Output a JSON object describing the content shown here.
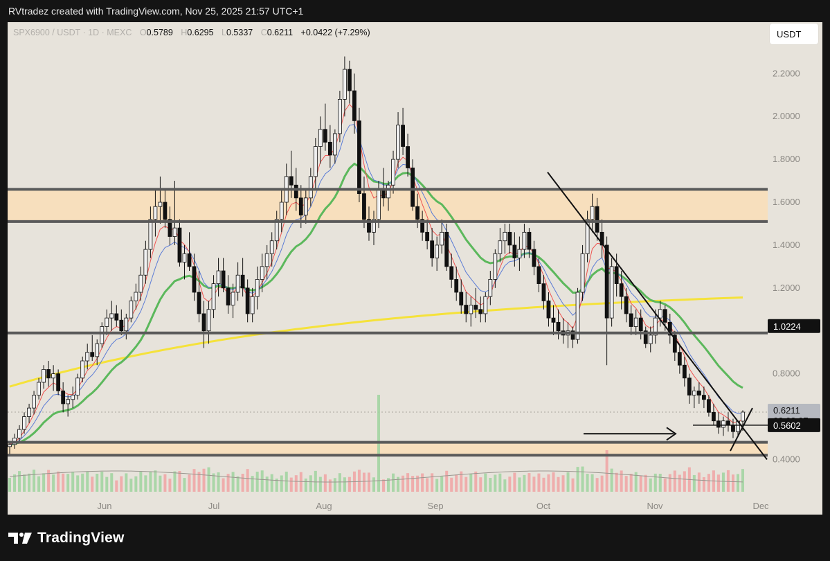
{
  "header": {
    "attribution": "RVtradez created with TradingView.com, Nov 25, 2025 21:57 UTC+1"
  },
  "legend": {
    "symbol": "SPX6900 / USDT · 1D · MEXC",
    "o_key": "O",
    "o_val": "0.5789",
    "h_key": "H",
    "h_val": "0.6295",
    "l_key": "L",
    "l_val": "0.5337",
    "c_key": "C",
    "c_val": "0.6211",
    "change": "+0.0422 (+7.29%)"
  },
  "currency_button": "USDT",
  "price_labels": {
    "level_1": "1.0224",
    "last_price": "0.6211",
    "countdown": "03:02:07",
    "level_2": "0.5602"
  },
  "footer": {
    "brand": "TradingView"
  },
  "colors": {
    "background": "#e7e3db",
    "bull": "#f1f1f1",
    "bear": "#111111",
    "ema_short": "#ef5350",
    "ema_mid": "#5b7cd6",
    "ema_green": "#5cb85c",
    "ema_yellow": "#f5e23a",
    "zone": "#f7dfbd",
    "hline": "#5a5a5a",
    "vol_up": "#9fd49f",
    "vol_down": "#f0a3a3"
  },
  "chart_data": {
    "type": "candlestick",
    "y_axis": {
      "scale": "linear",
      "min": 0.34,
      "max": 2.44,
      "ticks": [
        "2.2000",
        "2.0000",
        "1.8000",
        "1.6000",
        "1.4000",
        "1.2000",
        "0.8000",
        "0.4000"
      ]
    },
    "x_axis": {
      "ticks": [
        "Jun",
        "Jul",
        "Aug",
        "Sep",
        "Oct",
        "Nov",
        "Dec"
      ]
    },
    "candles": [
      [
        0.46,
        0.48,
        0.42,
        0.47
      ],
      [
        0.47,
        0.52,
        0.45,
        0.5
      ],
      [
        0.5,
        0.56,
        0.48,
        0.54
      ],
      [
        0.54,
        0.62,
        0.52,
        0.6
      ],
      [
        0.6,
        0.66,
        0.57,
        0.64
      ],
      [
        0.64,
        0.72,
        0.61,
        0.7
      ],
      [
        0.7,
        0.78,
        0.68,
        0.76
      ],
      [
        0.76,
        0.84,
        0.73,
        0.82
      ],
      [
        0.82,
        0.86,
        0.74,
        0.78
      ],
      [
        0.78,
        0.84,
        0.72,
        0.8
      ],
      [
        0.8,
        0.82,
        0.7,
        0.72
      ],
      [
        0.72,
        0.76,
        0.62,
        0.66
      ],
      [
        0.66,
        0.7,
        0.6,
        0.68
      ],
      [
        0.68,
        0.74,
        0.64,
        0.7
      ],
      [
        0.7,
        0.8,
        0.68,
        0.78
      ],
      [
        0.78,
        0.88,
        0.76,
        0.86
      ],
      [
        0.86,
        0.94,
        0.82,
        0.9
      ],
      [
        0.9,
        0.98,
        0.86,
        0.88
      ],
      [
        0.88,
        0.96,
        0.84,
        0.94
      ],
      [
        0.94,
        1.04,
        0.92,
        1.02
      ],
      [
        1.02,
        1.1,
        0.98,
        1.06
      ],
      [
        1.06,
        1.14,
        1.0,
        1.08
      ],
      [
        1.08,
        1.12,
        1.02,
        1.05
      ],
      [
        1.05,
        1.1,
        0.98,
        1.0
      ],
      [
        1.0,
        1.08,
        0.96,
        1.06
      ],
      [
        1.06,
        1.16,
        1.04,
        1.14
      ],
      [
        1.14,
        1.22,
        1.1,
        1.18
      ],
      [
        1.18,
        1.3,
        1.14,
        1.26
      ],
      [
        1.26,
        1.42,
        1.22,
        1.38
      ],
      [
        1.38,
        1.58,
        1.34,
        1.52
      ],
      [
        1.52,
        1.66,
        1.44,
        1.58
      ],
      [
        1.58,
        1.72,
        1.5,
        1.6
      ],
      [
        1.6,
        1.66,
        1.48,
        1.52
      ],
      [
        1.52,
        1.58,
        1.4,
        1.44
      ],
      [
        1.44,
        1.7,
        1.4,
        1.48
      ],
      [
        1.48,
        1.52,
        1.3,
        1.32
      ],
      [
        1.32,
        1.4,
        1.24,
        1.36
      ],
      [
        1.36,
        1.46,
        1.28,
        1.3
      ],
      [
        1.3,
        1.36,
        1.14,
        1.18
      ],
      [
        1.18,
        1.28,
        1.04,
        1.08
      ],
      [
        1.08,
        1.14,
        0.92,
        1.0
      ],
      [
        1.0,
        1.14,
        0.94,
        1.1
      ],
      [
        1.1,
        1.26,
        1.06,
        1.22
      ],
      [
        1.22,
        1.34,
        1.16,
        1.28
      ],
      [
        1.28,
        1.34,
        1.18,
        1.2
      ],
      [
        1.2,
        1.26,
        1.08,
        1.12
      ],
      [
        1.12,
        1.22,
        1.06,
        1.18
      ],
      [
        1.18,
        1.32,
        1.14,
        1.26
      ],
      [
        1.26,
        1.34,
        1.16,
        1.2
      ],
      [
        1.2,
        1.24,
        1.04,
        1.08
      ],
      [
        1.08,
        1.2,
        1.04,
        1.16
      ],
      [
        1.16,
        1.3,
        1.1,
        1.24
      ],
      [
        1.24,
        1.36,
        1.18,
        1.3
      ],
      [
        1.3,
        1.4,
        1.24,
        1.36
      ],
      [
        1.36,
        1.46,
        1.3,
        1.42
      ],
      [
        1.42,
        1.56,
        1.38,
        1.52
      ],
      [
        1.52,
        1.66,
        1.46,
        1.6
      ],
      [
        1.6,
        1.78,
        1.54,
        1.72
      ],
      [
        1.72,
        1.84,
        1.62,
        1.68
      ],
      [
        1.68,
        1.76,
        1.56,
        1.62
      ],
      [
        1.62,
        1.68,
        1.48,
        1.54
      ],
      [
        1.54,
        1.66,
        1.5,
        1.62
      ],
      [
        1.62,
        1.76,
        1.58,
        1.72
      ],
      [
        1.72,
        1.9,
        1.66,
        1.86
      ],
      [
        1.86,
        2.0,
        1.78,
        1.94
      ],
      [
        1.94,
        2.06,
        1.84,
        1.88
      ],
      [
        1.88,
        1.96,
        1.76,
        1.82
      ],
      [
        1.82,
        1.94,
        1.78,
        1.92
      ],
      [
        1.92,
        2.12,
        1.88,
        2.08
      ],
      [
        2.08,
        2.28,
        2.0,
        2.22
      ],
      [
        2.22,
        2.26,
        2.06,
        2.12
      ],
      [
        2.12,
        2.2,
        1.92,
        1.98
      ],
      [
        1.98,
        2.04,
        1.6,
        1.64
      ],
      [
        1.64,
        1.72,
        1.48,
        1.52
      ],
      [
        1.52,
        1.58,
        1.42,
        1.46
      ],
      [
        1.46,
        1.56,
        1.4,
        1.52
      ],
      [
        1.52,
        1.7,
        1.48,
        1.66
      ],
      [
        1.66,
        1.76,
        1.58,
        1.62
      ],
      [
        1.62,
        1.7,
        1.56,
        1.68
      ],
      [
        1.68,
        1.84,
        1.64,
        1.8
      ],
      [
        1.8,
        2.02,
        1.76,
        1.96
      ],
      [
        1.96,
        2.04,
        1.82,
        1.86
      ],
      [
        1.86,
        1.92,
        1.72,
        1.76
      ],
      [
        1.76,
        1.8,
        1.56,
        1.58
      ],
      [
        1.58,
        1.64,
        1.48,
        1.52
      ],
      [
        1.52,
        1.56,
        1.42,
        1.46
      ],
      [
        1.46,
        1.52,
        1.38,
        1.42
      ],
      [
        1.42,
        1.48,
        1.3,
        1.34
      ],
      [
        1.34,
        1.44,
        1.28,
        1.4
      ],
      [
        1.4,
        1.52,
        1.36,
        1.46
      ],
      [
        1.46,
        1.5,
        1.28,
        1.3
      ],
      [
        1.3,
        1.36,
        1.2,
        1.24
      ],
      [
        1.24,
        1.3,
        1.14,
        1.18
      ],
      [
        1.18,
        1.24,
        1.08,
        1.12
      ],
      [
        1.12,
        1.18,
        1.04,
        1.08
      ],
      [
        1.08,
        1.16,
        1.02,
        1.12
      ],
      [
        1.12,
        1.2,
        1.06,
        1.1
      ],
      [
        1.1,
        1.16,
        1.04,
        1.08
      ],
      [
        1.08,
        1.18,
        1.04,
        1.16
      ],
      [
        1.16,
        1.28,
        1.12,
        1.24
      ],
      [
        1.24,
        1.38,
        1.2,
        1.36
      ],
      [
        1.36,
        1.48,
        1.32,
        1.42
      ],
      [
        1.42,
        1.5,
        1.36,
        1.46
      ],
      [
        1.46,
        1.5,
        1.36,
        1.4
      ],
      [
        1.4,
        1.46,
        1.3,
        1.34
      ],
      [
        1.34,
        1.44,
        1.28,
        1.38
      ],
      [
        1.38,
        1.5,
        1.34,
        1.46
      ],
      [
        1.46,
        1.48,
        1.34,
        1.38
      ],
      [
        1.38,
        1.42,
        1.26,
        1.3
      ],
      [
        1.3,
        1.34,
        1.18,
        1.22
      ],
      [
        1.22,
        1.26,
        1.1,
        1.14
      ],
      [
        1.14,
        1.18,
        1.02,
        1.06
      ],
      [
        1.06,
        1.12,
        0.98,
        1.04
      ],
      [
        1.04,
        1.1,
        0.96,
        1.0
      ],
      [
        1.0,
        1.06,
        0.94,
        0.98
      ],
      [
        0.98,
        1.04,
        0.92,
        1.0
      ],
      [
        1.0,
        1.02,
        0.92,
        0.96
      ],
      [
        0.96,
        1.2,
        0.94,
        1.18
      ],
      [
        1.18,
        1.4,
        1.14,
        1.36
      ],
      [
        1.36,
        1.56,
        1.32,
        1.52
      ],
      [
        1.52,
        1.64,
        1.46,
        1.58
      ],
      [
        1.58,
        1.62,
        1.42,
        1.46
      ],
      [
        1.46,
        1.52,
        1.34,
        1.4
      ],
      [
        1.4,
        1.44,
        0.84,
        1.06
      ],
      [
        1.06,
        1.34,
        1.02,
        1.3
      ],
      [
        1.3,
        1.36,
        1.16,
        1.22
      ],
      [
        1.22,
        1.28,
        1.1,
        1.16
      ],
      [
        1.16,
        1.2,
        1.04,
        1.08
      ],
      [
        1.08,
        1.12,
        0.98,
        1.02
      ],
      [
        1.02,
        1.1,
        0.98,
        1.06
      ],
      [
        1.06,
        1.1,
        0.96,
        1.0
      ],
      [
        1.0,
        1.02,
        0.92,
        0.94
      ],
      [
        0.94,
        1.02,
        0.9,
        0.98
      ],
      [
        0.98,
        1.1,
        0.94,
        1.06
      ],
      [
        1.06,
        1.14,
        1.02,
        1.1
      ],
      [
        1.1,
        1.12,
        1.0,
        1.04
      ],
      [
        1.04,
        1.08,
        0.94,
        0.98
      ],
      [
        0.98,
        1.0,
        0.86,
        0.9
      ],
      [
        0.9,
        0.94,
        0.8,
        0.84
      ],
      [
        0.84,
        0.88,
        0.74,
        0.78
      ],
      [
        0.78,
        0.8,
        0.66,
        0.7
      ],
      [
        0.7,
        0.74,
        0.64,
        0.72
      ],
      [
        0.72,
        0.76,
        0.66,
        0.7
      ],
      [
        0.7,
        0.74,
        0.64,
        0.68
      ],
      [
        0.68,
        0.7,
        0.6,
        0.62
      ],
      [
        0.62,
        0.66,
        0.56,
        0.58
      ],
      [
        0.58,
        0.62,
        0.52,
        0.55
      ],
      [
        0.55,
        0.6,
        0.51,
        0.58
      ],
      [
        0.58,
        0.62,
        0.53,
        0.56
      ],
      [
        0.56,
        0.59,
        0.5,
        0.53
      ],
      [
        0.53,
        0.58,
        0.51,
        0.5789
      ],
      [
        0.5789,
        0.6295,
        0.5337,
        0.6211
      ]
    ],
    "indicators": [
      {
        "name": "EMA short",
        "color": "#ef5350"
      },
      {
        "name": "EMA mid",
        "color": "#5b7cd6"
      },
      {
        "name": "EMA green",
        "color": "#5cb85c"
      },
      {
        "name": "EMA yellow",
        "color": "#f5e23a"
      }
    ],
    "zones": [
      {
        "from": 1.51,
        "to": 1.66
      },
      {
        "from": 0.42,
        "to": 0.48
      }
    ],
    "horizontal_levels": [
      1.66,
      1.51,
      0.99,
      0.48,
      0.42
    ],
    "annotations": [
      "descending trendline",
      "arrow pointing right toward 0.5602",
      "breakout arrow"
    ]
  }
}
